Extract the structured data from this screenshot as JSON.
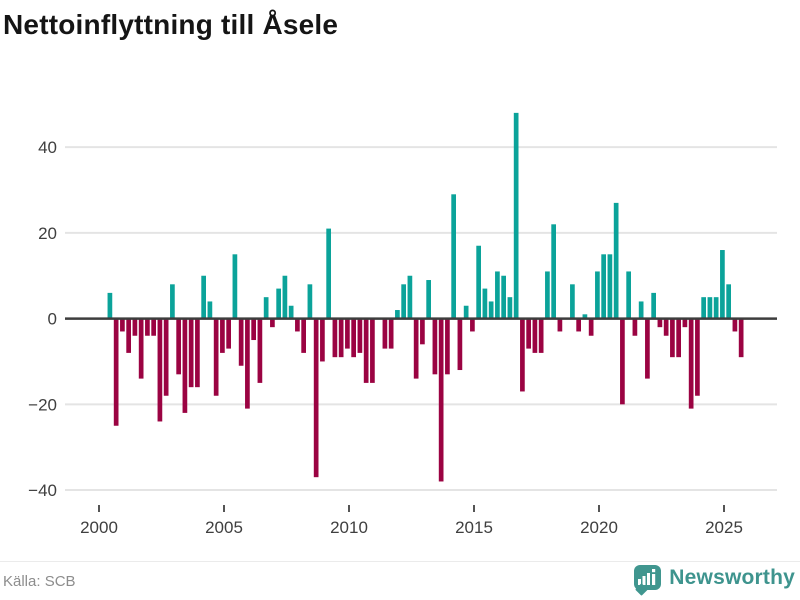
{
  "title": "Nettoinflyttning till Åsele",
  "source": "Källa: SCB",
  "brand": {
    "name": "Newsworthy",
    "color": "#3e948e",
    "icon": "bar-chart-speech-bubble"
  },
  "chart_data": {
    "type": "bar",
    "title": "Nettoinflyttning till Åsele",
    "frequency": "quarterly",
    "start_year": 2000,
    "xlabel": "",
    "ylabel": "",
    "grid": true,
    "ylim": [
      -42,
      50
    ],
    "y_axis": {
      "tick_values": [
        40,
        20,
        0,
        -20,
        -40
      ],
      "tick_labels": [
        "40",
        "20",
        "0",
        "−20",
        "−40"
      ]
    },
    "x_axis": {
      "tick_years": [
        2000,
        2005,
        2010,
        2015,
        2020,
        2025
      ],
      "tick_labels": [
        "2000",
        "2005",
        "2010",
        "2015",
        "2020",
        "2025"
      ]
    },
    "colors": {
      "positive": "#0ba39a",
      "negative": "#9b0342",
      "gridline": "#e4e4e4",
      "zero_line": "#3d3d3d",
      "axis_text": "#3f3f3f"
    },
    "values_by_year": {
      "2000": [
        0,
        6,
        -25,
        -3
      ],
      "2001": [
        -8,
        -4,
        -14,
        -4
      ],
      "2002": [
        -4,
        -24,
        -18,
        8
      ],
      "2003": [
        -13,
        -22,
        -16,
        -16
      ],
      "2004": [
        10,
        4,
        -18,
        -8
      ],
      "2005": [
        -7,
        15,
        -11,
        -21
      ],
      "2006": [
        -5,
        -15,
        5,
        -2
      ],
      "2007": [
        7,
        10,
        3,
        -3
      ],
      "2008": [
        -8,
        8,
        -37,
        -10
      ],
      "2009": [
        21,
        -9,
        -9,
        -7
      ],
      "2010": [
        -9,
        -8,
        -15,
        -15
      ],
      "2011": [
        0,
        -7,
        -7,
        2
      ],
      "2012": [
        8,
        10,
        -14,
        -6
      ],
      "2013": [
        9,
        -13,
        -38,
        -13
      ],
      "2014": [
        29,
        -12,
        3,
        -3
      ],
      "2015": [
        17,
        7,
        4,
        11
      ],
      "2016": [
        10,
        5,
        48,
        -17
      ],
      "2017": [
        -7,
        -8,
        -8,
        11
      ],
      "2018": [
        22,
        -3,
        0,
        8
      ],
      "2019": [
        -3,
        1,
        -4,
        11
      ],
      "2020": [
        15,
        15,
        27,
        -20
      ],
      "2021": [
        11,
        -4,
        4,
        -14
      ],
      "2022": [
        6,
        -2,
        -4,
        -9
      ],
      "2023": [
        -9,
        -2,
        -21,
        -18
      ],
      "2024": [
        5,
        5,
        5,
        16
      ],
      "2025": [
        8,
        -3,
        -9
      ]
    }
  }
}
